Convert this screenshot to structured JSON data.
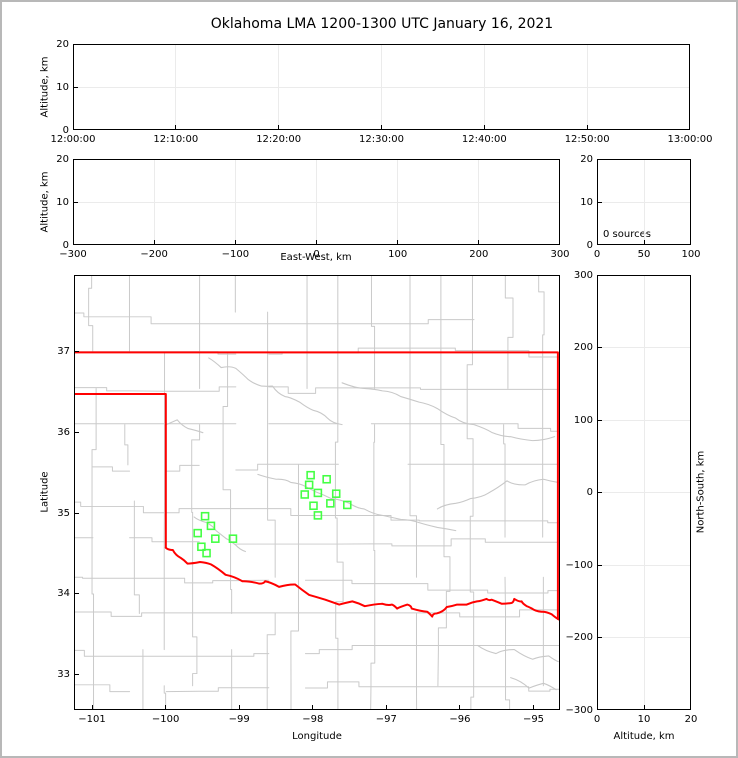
{
  "title": "Oklahoma LMA 1200-1300 UTC January 16, 2021",
  "colors": {
    "state_border": "#ff0000",
    "station": "#44ff44",
    "county": "#cacaca",
    "river": "#c8c8c8",
    "grid": "#ebebeb",
    "frame": "#b8b8b8",
    "spine": "#000000"
  },
  "chart_data": [
    {
      "type": "scatter",
      "name": "time_height",
      "ylabel": "Altitude, km",
      "xticks": [
        "12:00:00",
        "12:10:00",
        "12:20:00",
        "12:30:00",
        "12:40:00",
        "12:50:00",
        "13:00:00"
      ],
      "yticks": [
        0,
        10,
        20
      ],
      "ylim": [
        0,
        20
      ],
      "grid": true,
      "points": []
    },
    {
      "type": "scatter",
      "name": "ew_height",
      "xlabel": "East-West, km",
      "ylabel": "Altitude, km",
      "xticks": [
        -300,
        -200,
        -100,
        0,
        100,
        200,
        300
      ],
      "yticks": [
        0,
        10,
        20
      ],
      "xlim": [
        -300,
        300
      ],
      "ylim": [
        0,
        20
      ],
      "grid": true,
      "points": []
    },
    {
      "type": "histogram",
      "name": "alt_histogram",
      "annotation": "0 sources",
      "xticks": [
        0,
        50,
        100
      ],
      "yticks": [
        0,
        10,
        20
      ],
      "xlim": [
        0,
        100
      ],
      "ylim": [
        0,
        20
      ],
      "grid": true,
      "values": []
    },
    {
      "type": "map_scatter",
      "name": "plan_view",
      "xlabel": "Longitude",
      "ylabel": "Latitude",
      "xticks": [
        -101,
        -100,
        -99,
        -98,
        -97,
        -96,
        -95
      ],
      "yticks": [
        33,
        34,
        35,
        36,
        37
      ],
      "xlim": [
        -101.245,
        -94.64
      ],
      "ylim": [
        32.56,
        37.95
      ],
      "grid": false,
      "stations": [
        [
          -99.47,
          34.96
        ],
        [
          -99.39,
          34.84
        ],
        [
          -99.57,
          34.75
        ],
        [
          -99.33,
          34.68
        ],
        [
          -99.09,
          34.68
        ],
        [
          -99.52,
          34.58
        ],
        [
          -99.45,
          34.5
        ],
        [
          -98.03,
          35.47
        ],
        [
          -98.05,
          35.35
        ],
        [
          -97.81,
          35.42
        ],
        [
          -98.11,
          35.23
        ],
        [
          -97.93,
          35.25
        ],
        [
          -97.68,
          35.24
        ],
        [
          -97.99,
          35.09
        ],
        [
          -97.76,
          35.12
        ],
        [
          -97.53,
          35.1
        ],
        [
          -97.93,
          34.97
        ]
      ],
      "state_border": {
        "north": [
          [
            -101.245,
            37.0
          ],
          [
            -94.655,
            37.0
          ],
          [
            -94.655,
            33.68
          ]
        ],
        "panhandle": [
          [
            -101.245,
            36.48
          ],
          [
            -100.005,
            36.48
          ],
          [
            -100.005,
            34.567
          ]
        ],
        "red_river": [
          [
            -100.005,
            34.567
          ],
          [
            -99.91,
            34.54
          ],
          [
            -99.8,
            34.44
          ],
          [
            -99.71,
            34.37
          ],
          [
            -99.54,
            34.39
          ],
          [
            -99.39,
            34.36
          ],
          [
            -99.19,
            34.23
          ],
          [
            -98.96,
            34.15
          ],
          [
            -98.73,
            34.12
          ],
          [
            -98.65,
            34.15
          ],
          [
            -98.46,
            34.08
          ],
          [
            -98.24,
            34.11
          ],
          [
            -98.05,
            33.98
          ],
          [
            -97.83,
            33.92
          ],
          [
            -97.64,
            33.86
          ],
          [
            -97.46,
            33.9
          ],
          [
            -97.29,
            33.84
          ],
          [
            -97.05,
            33.87
          ],
          [
            -96.92,
            33.86
          ],
          [
            -96.85,
            33.81
          ],
          [
            -96.71,
            33.86
          ],
          [
            -96.65,
            33.81
          ],
          [
            -96.44,
            33.77
          ],
          [
            -96.37,
            33.71
          ],
          [
            -96.31,
            33.75
          ],
          [
            -96.17,
            33.83
          ],
          [
            -96.03,
            33.86
          ],
          [
            -95.9,
            33.86
          ],
          [
            -95.76,
            33.9
          ],
          [
            -95.63,
            33.93
          ],
          [
            -95.56,
            33.92
          ],
          [
            -95.42,
            33.87
          ],
          [
            -95.29,
            33.88
          ],
          [
            -95.25,
            33.93
          ],
          [
            -95.15,
            33.9
          ],
          [
            -95.08,
            33.84
          ],
          [
            -95.01,
            33.81
          ],
          [
            -94.88,
            33.77
          ],
          [
            -94.74,
            33.74
          ],
          [
            -94.63,
            33.67
          ]
        ]
      },
      "rivers": [
        [
          [
            -99.42,
            36.93
          ],
          [
            -99.25,
            36.81
          ],
          [
            -99.05,
            36.8
          ],
          [
            -98.88,
            36.66
          ],
          [
            -98.7,
            36.58
          ],
          [
            -98.55,
            36.58
          ],
          [
            -98.38,
            36.45
          ],
          [
            -98.18,
            36.38
          ],
          [
            -98.0,
            36.28
          ],
          [
            -97.8,
            36.18
          ],
          [
            -97.6,
            36.1
          ]
        ],
        [
          [
            -100.0,
            36.1
          ],
          [
            -99.85,
            36.16
          ],
          [
            -99.7,
            36.05
          ],
          [
            -99.5,
            36.0
          ]
        ],
        [
          [
            -98.75,
            35.48
          ],
          [
            -98.5,
            35.42
          ],
          [
            -98.3,
            35.38
          ],
          [
            -98.1,
            35.33
          ],
          [
            -97.95,
            35.26
          ],
          [
            -97.75,
            35.18
          ],
          [
            -97.5,
            35.12
          ],
          [
            -97.3,
            35.05
          ],
          [
            -97.05,
            34.97
          ],
          [
            -96.8,
            34.92
          ],
          [
            -96.55,
            34.88
          ],
          [
            -96.3,
            34.82
          ],
          [
            -96.05,
            34.78
          ]
        ],
        [
          [
            -97.6,
            36.62
          ],
          [
            -97.3,
            36.55
          ],
          [
            -97.05,
            36.52
          ],
          [
            -96.8,
            36.45
          ],
          [
            -96.55,
            36.38
          ],
          [
            -96.3,
            36.3
          ],
          [
            -96.05,
            36.18
          ],
          [
            -95.8,
            36.1
          ],
          [
            -95.55,
            36.0
          ],
          [
            -95.3,
            35.95
          ],
          [
            -95.0,
            35.9
          ],
          [
            -94.7,
            35.95
          ]
        ],
        [
          [
            -96.3,
            35.05
          ],
          [
            -96.05,
            35.12
          ],
          [
            -95.85,
            35.18
          ],
          [
            -95.6,
            35.25
          ],
          [
            -95.35,
            35.4
          ],
          [
            -95.1,
            35.35
          ],
          [
            -94.85,
            35.42
          ],
          [
            -94.65,
            35.38
          ]
        ],
        [
          [
            -99.62,
            34.95
          ],
          [
            -99.45,
            34.88
          ],
          [
            -99.32,
            34.78
          ],
          [
            -99.18,
            34.68
          ],
          [
            -99.05,
            34.6
          ],
          [
            -98.92,
            34.52
          ]
        ],
        [
          [
            -95.75,
            33.35
          ],
          [
            -95.5,
            33.25
          ],
          [
            -95.25,
            33.3
          ],
          [
            -95.0,
            33.18
          ],
          [
            -94.78,
            33.22
          ],
          [
            -94.65,
            33.15
          ]
        ],
        [
          [
            -95.3,
            32.95
          ],
          [
            -95.05,
            32.82
          ],
          [
            -94.85,
            32.88
          ],
          [
            -94.68,
            32.8
          ]
        ]
      ]
    },
    {
      "type": "scatter",
      "name": "ns_height",
      "xlabel": "Altitude, km",
      "ylabel": "North-South, km",
      "xticks": [
        0,
        10,
        20
      ],
      "yticks": [
        -300,
        -200,
        -100,
        0,
        100,
        200,
        300
      ],
      "xlim": [
        0,
        20
      ],
      "ylim": [
        -300,
        300
      ],
      "grid": true,
      "points": []
    }
  ]
}
